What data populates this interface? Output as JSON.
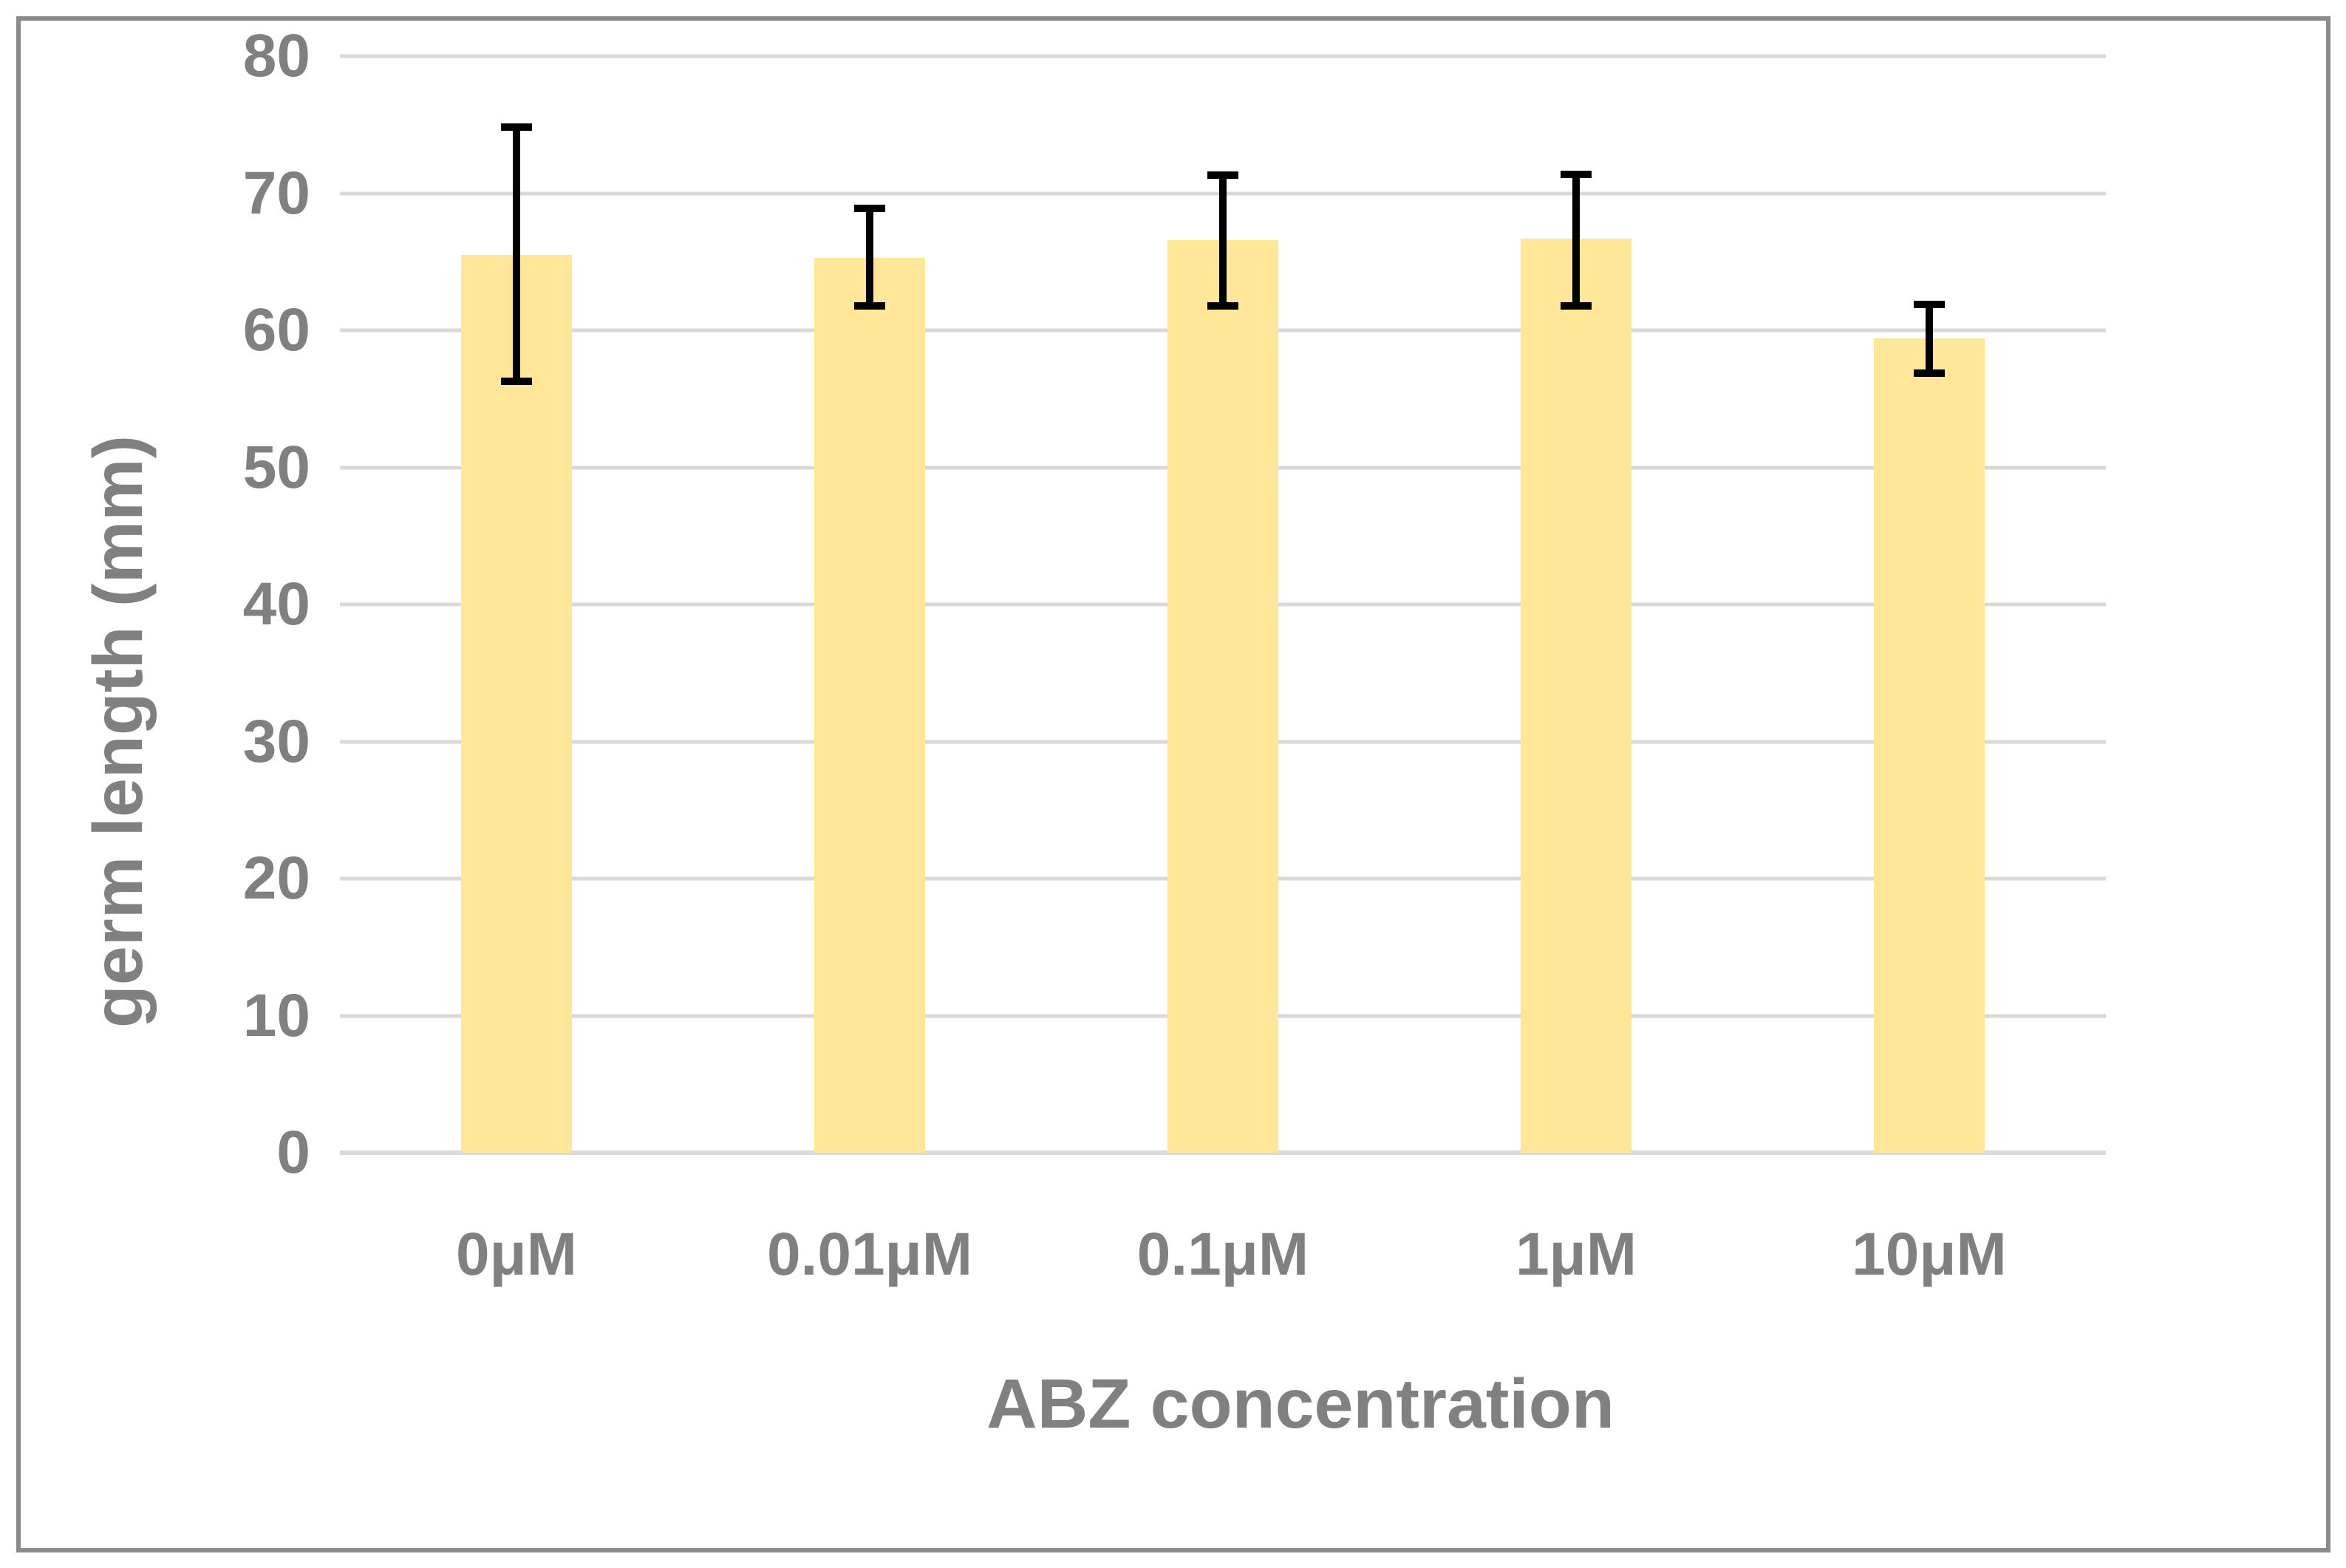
{
  "figure": {
    "background": "#FFFFFF",
    "border_color": "#8A8A8A"
  },
  "chart_data": {
    "type": "bar",
    "title": "",
    "categories": [
      "0μM",
      "0.01μM",
      "0.1μM",
      "1μM",
      "10μM"
    ],
    "values": [
      65.5,
      65.3,
      66.6,
      66.7,
      59.4
    ],
    "error_bars": {
      "low": [
        56.3,
        61.8,
        61.8,
        61.8,
        56.9
      ],
      "high": [
        74.8,
        68.9,
        71.3,
        71.4,
        61.9
      ]
    },
    "xlabel": "ABZ concentration",
    "ylabel": "germ length (mm)",
    "ylim": [
      0,
      80
    ],
    "yticks": [
      0,
      10,
      20,
      30,
      40,
      50,
      60,
      70,
      80
    ],
    "grid": true,
    "legend": false,
    "bar_color": "#FFE699",
    "error_color": "#000000",
    "gridline_color": "#D9D9D9",
    "axis_line_color": "#D9D9D9",
    "text_color": "#808080"
  }
}
